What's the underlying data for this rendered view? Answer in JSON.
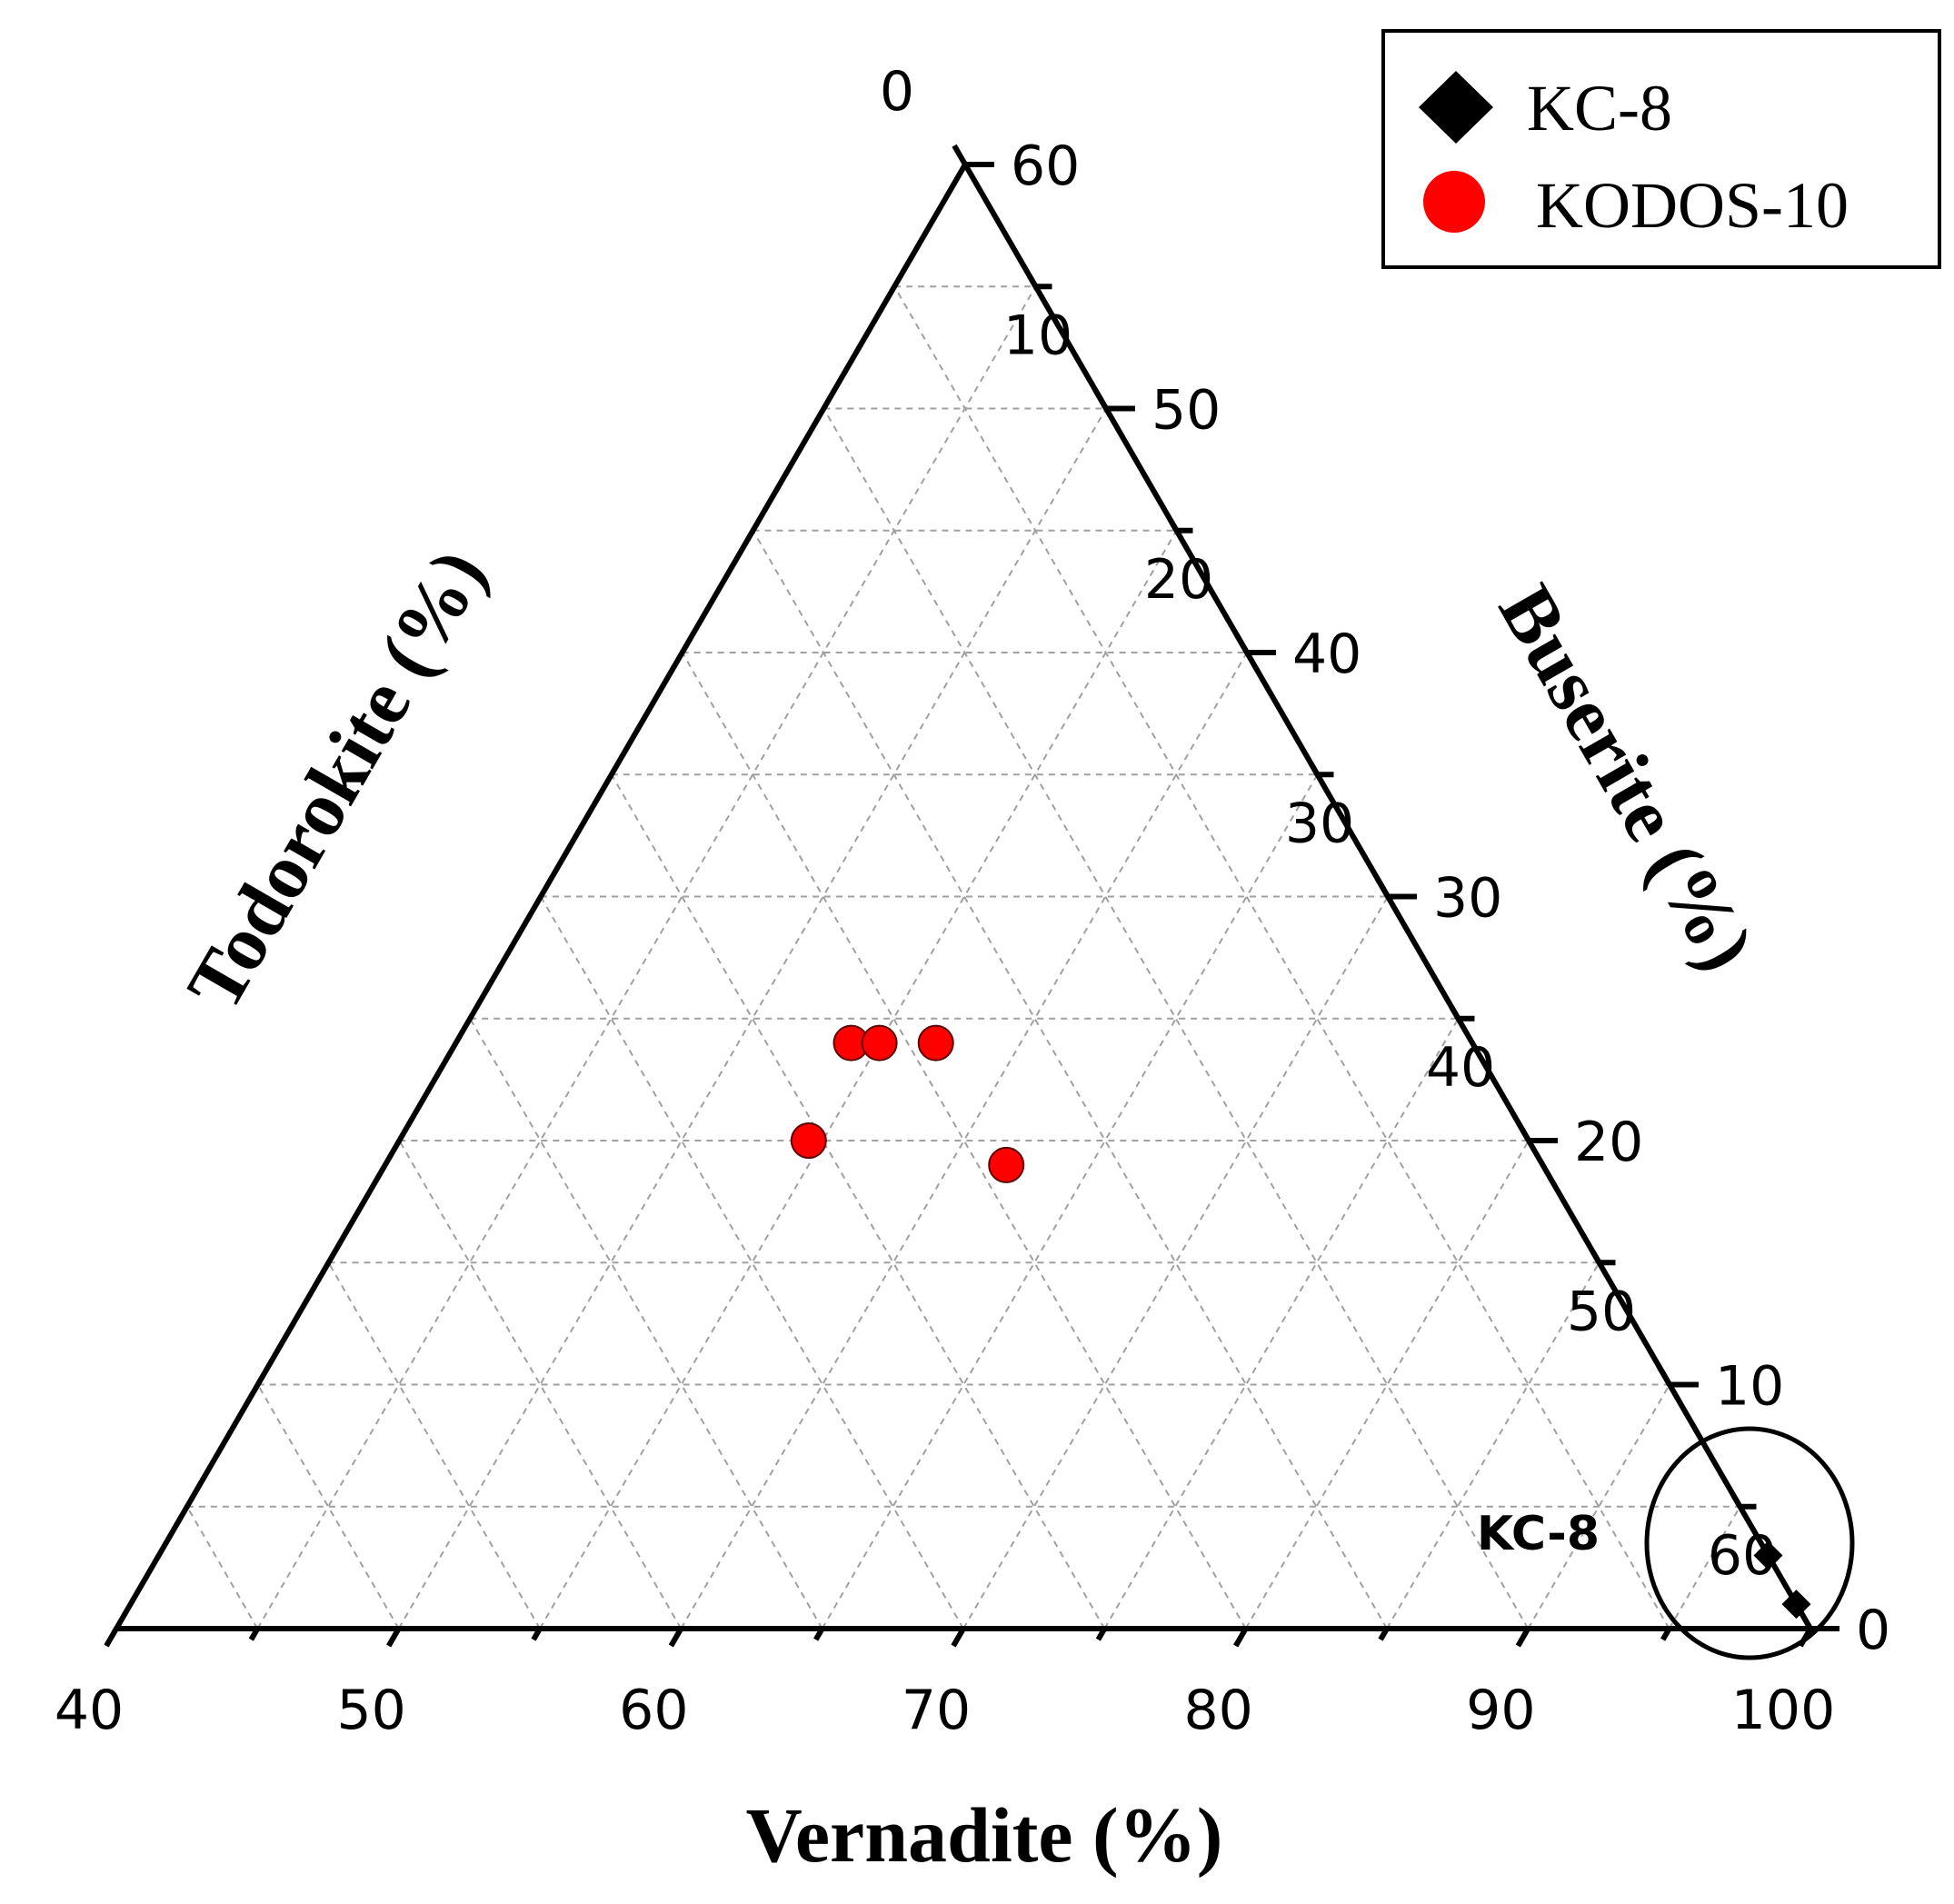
{
  "chart_data": {
    "type": "scatter",
    "subtype": "ternary",
    "axes": {
      "bottom": {
        "label": "Vernadite (%)",
        "range": [
          40,
          100
        ],
        "ticks": [
          40,
          50,
          60,
          70,
          80,
          90,
          100
        ],
        "tick_labels": [
          "40",
          "50",
          "60",
          "70",
          "80",
          "90",
          "100"
        ]
      },
      "left": {
        "label": "Todorokite (%)",
        "range": [
          0,
          60
        ],
        "ticks": [
          0,
          10,
          20,
          30,
          40,
          50,
          60
        ],
        "tick_labels": [
          "0",
          "10",
          "20",
          "30",
          "40",
          "50",
          "60"
        ]
      },
      "right": {
        "label": "Buserite (%)",
        "range": [
          0,
          60
        ],
        "ticks": [
          0,
          10,
          20,
          30,
          40,
          50,
          60
        ],
        "tick_labels": [
          "0",
          "10",
          "20",
          "30",
          "40",
          "50",
          "60"
        ]
      }
    },
    "grid": true,
    "grid_style": "dashed",
    "legend_position": "top-right",
    "series": [
      {
        "name": "KC-8",
        "marker": "diamond",
        "color": "#000000",
        "points": [
          {
            "vernadite": 97.0,
            "todorokite": 0.0,
            "buserite": 3.0
          },
          {
            "vernadite": 99.0,
            "todorokite": 0.0,
            "buserite": 1.0
          }
        ]
      },
      {
        "name": "KODOS-10",
        "marker": "circle",
        "color": "#ff0000",
        "points": [
          {
            "vernadite": 54.0,
            "todorokite": 22.0,
            "buserite": 24.0
          },
          {
            "vernadite": 54.5,
            "todorokite": 25.5,
            "buserite": 20.0
          },
          {
            "vernadite": 55.0,
            "todorokite": 21.0,
            "buserite": 24.0
          },
          {
            "vernadite": 57.0,
            "todorokite": 19.0,
            "buserite": 24.0
          },
          {
            "vernadite": 62.0,
            "todorokite": 19.0,
            "buserite": 19.0
          }
        ]
      }
    ],
    "annotations": [
      {
        "text": "KC-8",
        "target": "KC-8"
      }
    ]
  }
}
